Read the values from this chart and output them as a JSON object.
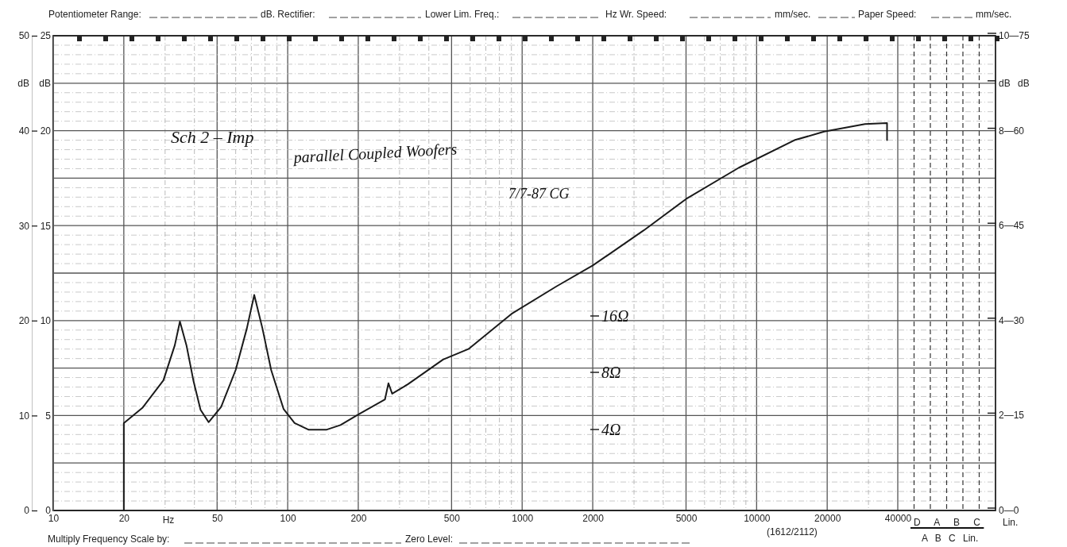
{
  "chart_data": {
    "type": "line",
    "xlabel": "Hz",
    "ylabel": "dB",
    "y2label": "dB",
    "log": "x",
    "color": "#1a1a1a",
    "marker": "none",
    "line_style": "solid",
    "grid": true,
    "x": [
      20,
      20,
      24,
      29.5,
      33,
      34.7,
      37,
      39.6,
      42.5,
      46,
      52,
      60,
      67,
      72,
      78,
      85,
      96,
      107,
      123,
      146,
      168,
      200,
      260,
      269,
      279,
      326,
      460,
      590,
      900,
      1400,
      2000,
      3300,
      5000,
      8400,
      14500,
      19400,
      29000,
      36000,
      36000
    ],
    "values": [
      0,
      9.2,
      10.8,
      13.7,
      17.4,
      19.9,
      17.4,
      13.7,
      10.6,
      9.3,
      10.9,
      14.8,
      19.2,
      22.7,
      19.2,
      14.8,
      10.7,
      9.2,
      8.5,
      8.5,
      9.0,
      10.1,
      11.7,
      13.4,
      12.3,
      13.3,
      15.9,
      17.0,
      20.7,
      23.6,
      25.8,
      29.5,
      32.8,
      36.1,
      39.0,
      39.9,
      40.7,
      40.8,
      39.0
    ],
    "xlim": [
      10,
      40000
    ],
    "xticks": [
      10,
      20,
      50,
      100,
      200,
      500,
      1000,
      2000,
      5000,
      10000,
      20000,
      40000
    ],
    "ylim": [
      0,
      50
    ],
    "yticks": [
      0,
      10,
      20,
      30,
      40,
      50
    ],
    "y2lim": [
      0,
      25
    ],
    "y2ticks": [
      0,
      5,
      10,
      15,
      20,
      25
    ],
    "annotations": [
      "Potentiometer Range:",
      "dB. Rectifier:",
      "Lower Lim. Freq.:",
      "Hz Wr. Speed:",
      "mm/sec.",
      "Paper Speed:",
      "mm/sec.",
      "Multiply Frequency Scale by:",
      "Zero Level:",
      "(1612/2112)",
      "D A B C",
      "Lin.",
      "A B C Lin.",
      "Sch 2 – Imp",
      "parallel Coupled Woofers",
      "7/7-87 CG",
      "16Ω",
      "8Ω",
      "4Ω",
      "10—75",
      "8—60",
      "6—45",
      "4—30",
      "2—15",
      "0—0",
      "dB dB"
    ]
  }
}
